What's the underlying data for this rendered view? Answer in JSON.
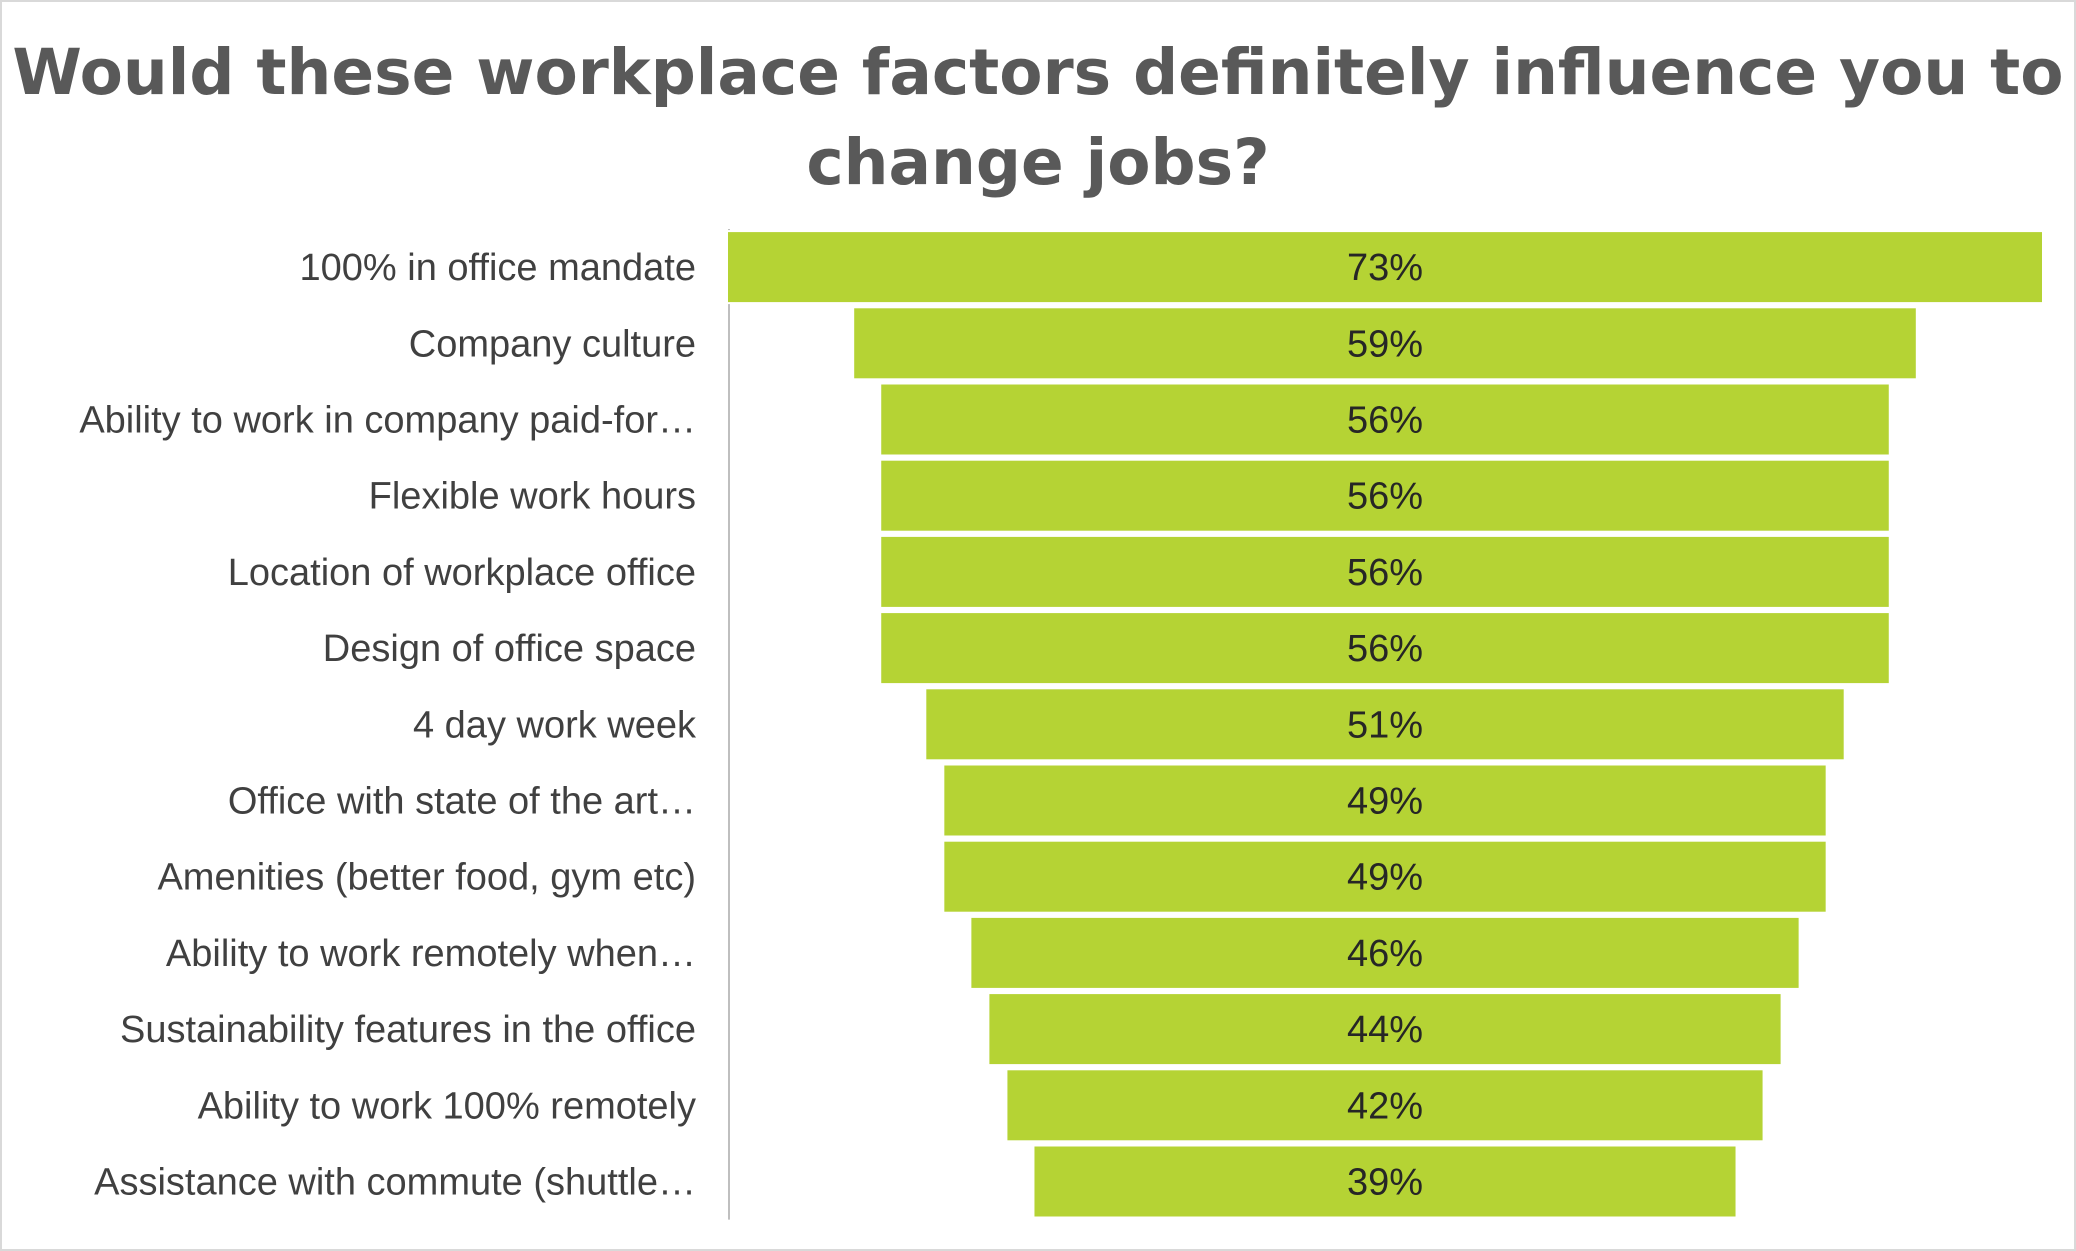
{
  "chart_data": {
    "type": "bar",
    "orientation": "horizontal",
    "layout": "centered-funnel",
    "title": "Would these workplace factors definitely influence you to change jobs?",
    "categories": [
      "100% in office mandate",
      "Company culture",
      "Ability to work in company paid-for…",
      "Flexible work hours",
      "Location of workplace office",
      "Design of office space",
      "4 day work week",
      "Office with state of the art…",
      "Amenities (better food, gym etc)",
      "Ability to work remotely when…",
      "Sustainability features in the office",
      "Ability to work 100% remotely",
      "Assistance with commute (shuttle…"
    ],
    "values": [
      73,
      59,
      56,
      56,
      56,
      56,
      51,
      49,
      49,
      46,
      44,
      42,
      39
    ],
    "value_labels": [
      "73%",
      "59%",
      "56%",
      "56%",
      "56%",
      "56%",
      "51%",
      "49%",
      "49%",
      "46%",
      "44%",
      "42%",
      "39%"
    ],
    "unit": "%",
    "legend": "none",
    "grid": false,
    "colors": {
      "bar": "#b5d334",
      "bar_border": "#ffffff",
      "axis": "#bfbfbf",
      "title": "#595959",
      "text": "#404040"
    }
  }
}
